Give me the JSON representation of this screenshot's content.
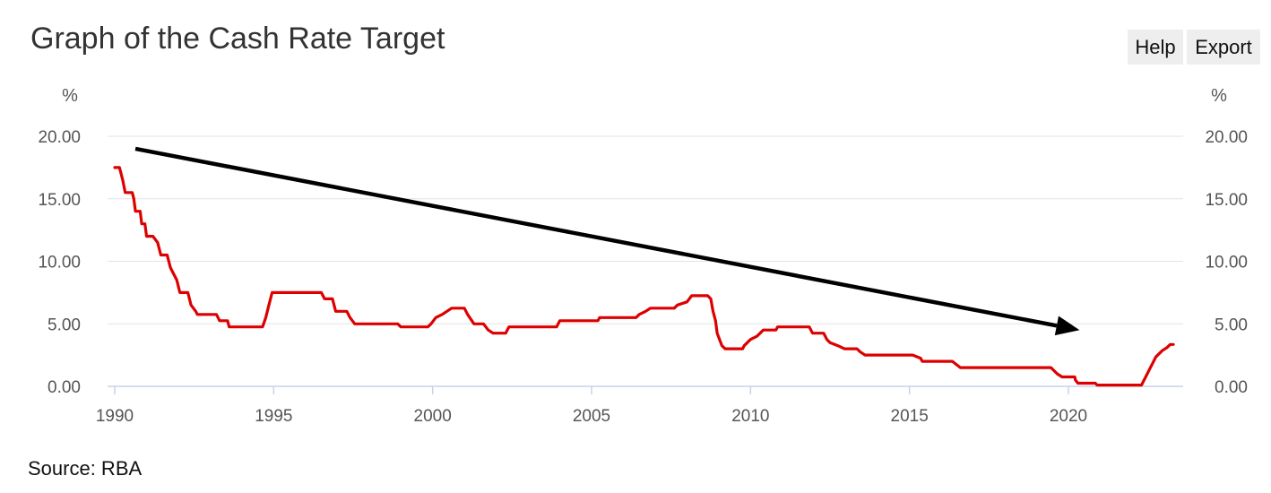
{
  "header": {
    "title": "Graph of the Cash Rate Target",
    "help_label": "Help",
    "export_label": "Export"
  },
  "footer": {
    "source": "Source: RBA"
  },
  "colors": {
    "series": "#dd0000",
    "arrow": "#000000",
    "grid": "#e3e3e3",
    "axis": "#c8d2e8"
  },
  "chart_data": {
    "type": "line",
    "title": "Graph of the Cash Rate Target",
    "y_unit_left": "%",
    "y_unit_right": "%",
    "xlim": [
      1990,
      2023.3
    ],
    "ylim": [
      0,
      20
    ],
    "x_ticks": [
      "1990",
      "1995",
      "2000",
      "2005",
      "2010",
      "2015",
      "2020"
    ],
    "y_ticks": [
      "0.00",
      "5.00",
      "10.00",
      "15.00",
      "20.00"
    ],
    "grid": true,
    "series": [
      {
        "points": [
          [
            1990.0,
            17.5
          ],
          [
            1990.15,
            17.5
          ],
          [
            1990.2,
            17.0
          ],
          [
            1990.25,
            16.5
          ],
          [
            1990.33,
            15.5
          ],
          [
            1990.55,
            15.5
          ],
          [
            1990.6,
            15.0
          ],
          [
            1990.65,
            14.0
          ],
          [
            1990.8,
            14.0
          ],
          [
            1990.85,
            13.0
          ],
          [
            1990.95,
            13.0
          ],
          [
            1991.0,
            12.0
          ],
          [
            1991.2,
            12.0
          ],
          [
            1991.35,
            11.5
          ],
          [
            1991.45,
            10.5
          ],
          [
            1991.65,
            10.5
          ],
          [
            1991.75,
            9.5
          ],
          [
            1991.85,
            9.0
          ],
          [
            1991.95,
            8.5
          ],
          [
            1992.05,
            7.5
          ],
          [
            1992.3,
            7.5
          ],
          [
            1992.4,
            6.5
          ],
          [
            1992.55,
            6.0
          ],
          [
            1992.6,
            5.75
          ],
          [
            1993.2,
            5.75
          ],
          [
            1993.3,
            5.25
          ],
          [
            1993.55,
            5.25
          ],
          [
            1993.6,
            4.75
          ],
          [
            1994.65,
            4.75
          ],
          [
            1994.75,
            5.5
          ],
          [
            1994.85,
            6.5
          ],
          [
            1994.95,
            7.5
          ],
          [
            1996.5,
            7.5
          ],
          [
            1996.6,
            7.0
          ],
          [
            1996.85,
            7.0
          ],
          [
            1996.95,
            6.0
          ],
          [
            1997.3,
            6.0
          ],
          [
            1997.4,
            5.5
          ],
          [
            1997.55,
            5.0
          ],
          [
            1998.9,
            5.0
          ],
          [
            1999.0,
            4.75
          ],
          [
            1999.85,
            4.75
          ],
          [
            1999.95,
            5.0
          ],
          [
            2000.1,
            5.5
          ],
          [
            2000.3,
            5.75
          ],
          [
            2000.6,
            6.25
          ],
          [
            2001.0,
            6.25
          ],
          [
            2001.1,
            5.75
          ],
          [
            2001.3,
            5.0
          ],
          [
            2001.6,
            5.0
          ],
          [
            2001.75,
            4.5
          ],
          [
            2001.9,
            4.25
          ],
          [
            2002.3,
            4.25
          ],
          [
            2002.4,
            4.75
          ],
          [
            2003.9,
            4.75
          ],
          [
            2004.0,
            5.25
          ],
          [
            2005.2,
            5.25
          ],
          [
            2005.25,
            5.5
          ],
          [
            2006.4,
            5.5
          ],
          [
            2006.5,
            5.75
          ],
          [
            2006.7,
            6.0
          ],
          [
            2006.85,
            6.25
          ],
          [
            2007.6,
            6.25
          ],
          [
            2007.7,
            6.5
          ],
          [
            2008.0,
            6.75
          ],
          [
            2008.15,
            7.25
          ],
          [
            2008.65,
            7.25
          ],
          [
            2008.75,
            7.0
          ],
          [
            2008.82,
            6.0
          ],
          [
            2008.9,
            5.25
          ],
          [
            2008.95,
            4.25
          ],
          [
            2009.1,
            3.25
          ],
          [
            2009.2,
            3.0
          ],
          [
            2009.75,
            3.0
          ],
          [
            2009.8,
            3.25
          ],
          [
            2009.9,
            3.5
          ],
          [
            2010.0,
            3.75
          ],
          [
            2010.2,
            4.0
          ],
          [
            2010.3,
            4.25
          ],
          [
            2010.4,
            4.5
          ],
          [
            2010.8,
            4.5
          ],
          [
            2010.85,
            4.75
          ],
          [
            2011.85,
            4.75
          ],
          [
            2011.9,
            4.5
          ],
          [
            2011.95,
            4.25
          ],
          [
            2012.3,
            4.25
          ],
          [
            2012.4,
            3.75
          ],
          [
            2012.5,
            3.5
          ],
          [
            2012.75,
            3.25
          ],
          [
            2012.95,
            3.0
          ],
          [
            2013.35,
            3.0
          ],
          [
            2013.45,
            2.75
          ],
          [
            2013.6,
            2.5
          ],
          [
            2015.1,
            2.5
          ],
          [
            2015.35,
            2.25
          ],
          [
            2015.4,
            2.0
          ],
          [
            2016.35,
            2.0
          ],
          [
            2016.6,
            1.5
          ],
          [
            2019.45,
            1.5
          ],
          [
            2019.55,
            1.25
          ],
          [
            2019.65,
            1.0
          ],
          [
            2019.8,
            0.75
          ],
          [
            2020.2,
            0.75
          ],
          [
            2020.22,
            0.5
          ],
          [
            2020.3,
            0.25
          ],
          [
            2020.85,
            0.25
          ],
          [
            2020.9,
            0.1
          ],
          [
            2022.3,
            0.1
          ],
          [
            2022.35,
            0.35
          ],
          [
            2022.45,
            0.85
          ],
          [
            2022.55,
            1.35
          ],
          [
            2022.65,
            1.85
          ],
          [
            2022.75,
            2.35
          ],
          [
            2022.85,
            2.6
          ],
          [
            2022.95,
            2.85
          ],
          [
            2023.1,
            3.1
          ],
          [
            2023.2,
            3.35
          ],
          [
            2023.3,
            3.35
          ]
        ]
      }
    ],
    "annotations": [
      {
        "type": "arrow",
        "from": [
          1990.65,
          19.0
        ],
        "to": [
          2020.35,
          4.5
        ]
      }
    ]
  }
}
